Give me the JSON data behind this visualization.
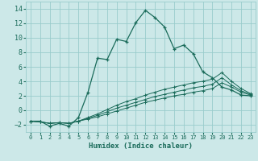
{
  "xlabel": "Humidex (Indice chaleur)",
  "background_color": "#cce8e8",
  "grid_color": "#99cccc",
  "line_color": "#1a6b5a",
  "xlim": [
    -0.5,
    23.5
  ],
  "ylim": [
    -3.0,
    15.0
  ],
  "xticks": [
    0,
    1,
    2,
    3,
    4,
    5,
    6,
    7,
    8,
    9,
    10,
    11,
    12,
    13,
    14,
    15,
    16,
    17,
    18,
    19,
    20,
    21,
    22,
    23
  ],
  "yticks": [
    -2,
    0,
    2,
    4,
    6,
    8,
    10,
    12,
    14
  ],
  "line1_x": [
    0,
    1,
    2,
    3,
    4,
    5,
    6,
    7,
    8,
    9,
    10,
    11,
    12,
    13,
    14,
    15,
    16,
    17,
    18,
    19,
    20,
    21,
    22,
    23
  ],
  "line1_y": [
    -1.5,
    -1.5,
    -2.2,
    -1.8,
    -2.2,
    -1.0,
    2.5,
    7.2,
    7.0,
    9.8,
    9.5,
    12.1,
    13.8,
    12.8,
    11.5,
    8.5,
    9.0,
    7.8,
    5.3,
    4.5,
    3.2,
    2.8,
    2.1,
    2.0
  ],
  "line2_x": [
    0,
    1,
    2,
    3,
    4,
    5,
    6,
    7,
    8,
    9,
    10,
    11,
    12,
    13,
    14,
    15,
    16,
    17,
    18,
    19,
    20,
    21,
    22,
    23
  ],
  "line2_y": [
    -1.5,
    -1.6,
    -1.8,
    -1.7,
    -1.8,
    -1.5,
    -1.2,
    -0.9,
    -0.5,
    -0.1,
    0.3,
    0.7,
    1.1,
    1.4,
    1.7,
    2.0,
    2.2,
    2.5,
    2.7,
    3.0,
    3.8,
    3.2,
    2.5,
    2.1
  ],
  "line3_x": [
    0,
    1,
    2,
    3,
    4,
    5,
    6,
    7,
    8,
    9,
    10,
    11,
    12,
    13,
    14,
    15,
    16,
    17,
    18,
    19,
    20,
    21,
    22,
    23
  ],
  "line3_y": [
    -1.5,
    -1.6,
    -1.8,
    -1.7,
    -1.8,
    -1.5,
    -1.1,
    -0.7,
    -0.2,
    0.3,
    0.7,
    1.1,
    1.5,
    1.9,
    2.2,
    2.5,
    2.8,
    3.1,
    3.3,
    3.6,
    4.5,
    3.5,
    2.7,
    2.2
  ],
  "line4_x": [
    0,
    1,
    2,
    3,
    4,
    5,
    6,
    7,
    8,
    9,
    10,
    11,
    12,
    13,
    14,
    15,
    16,
    17,
    18,
    19,
    20,
    21,
    22,
    23
  ],
  "line4_y": [
    -1.5,
    -1.6,
    -1.8,
    -1.7,
    -1.8,
    -1.5,
    -1.0,
    -0.5,
    0.1,
    0.7,
    1.2,
    1.6,
    2.1,
    2.5,
    2.9,
    3.2,
    3.5,
    3.8,
    4.0,
    4.3,
    5.2,
    4.0,
    3.0,
    2.3
  ]
}
